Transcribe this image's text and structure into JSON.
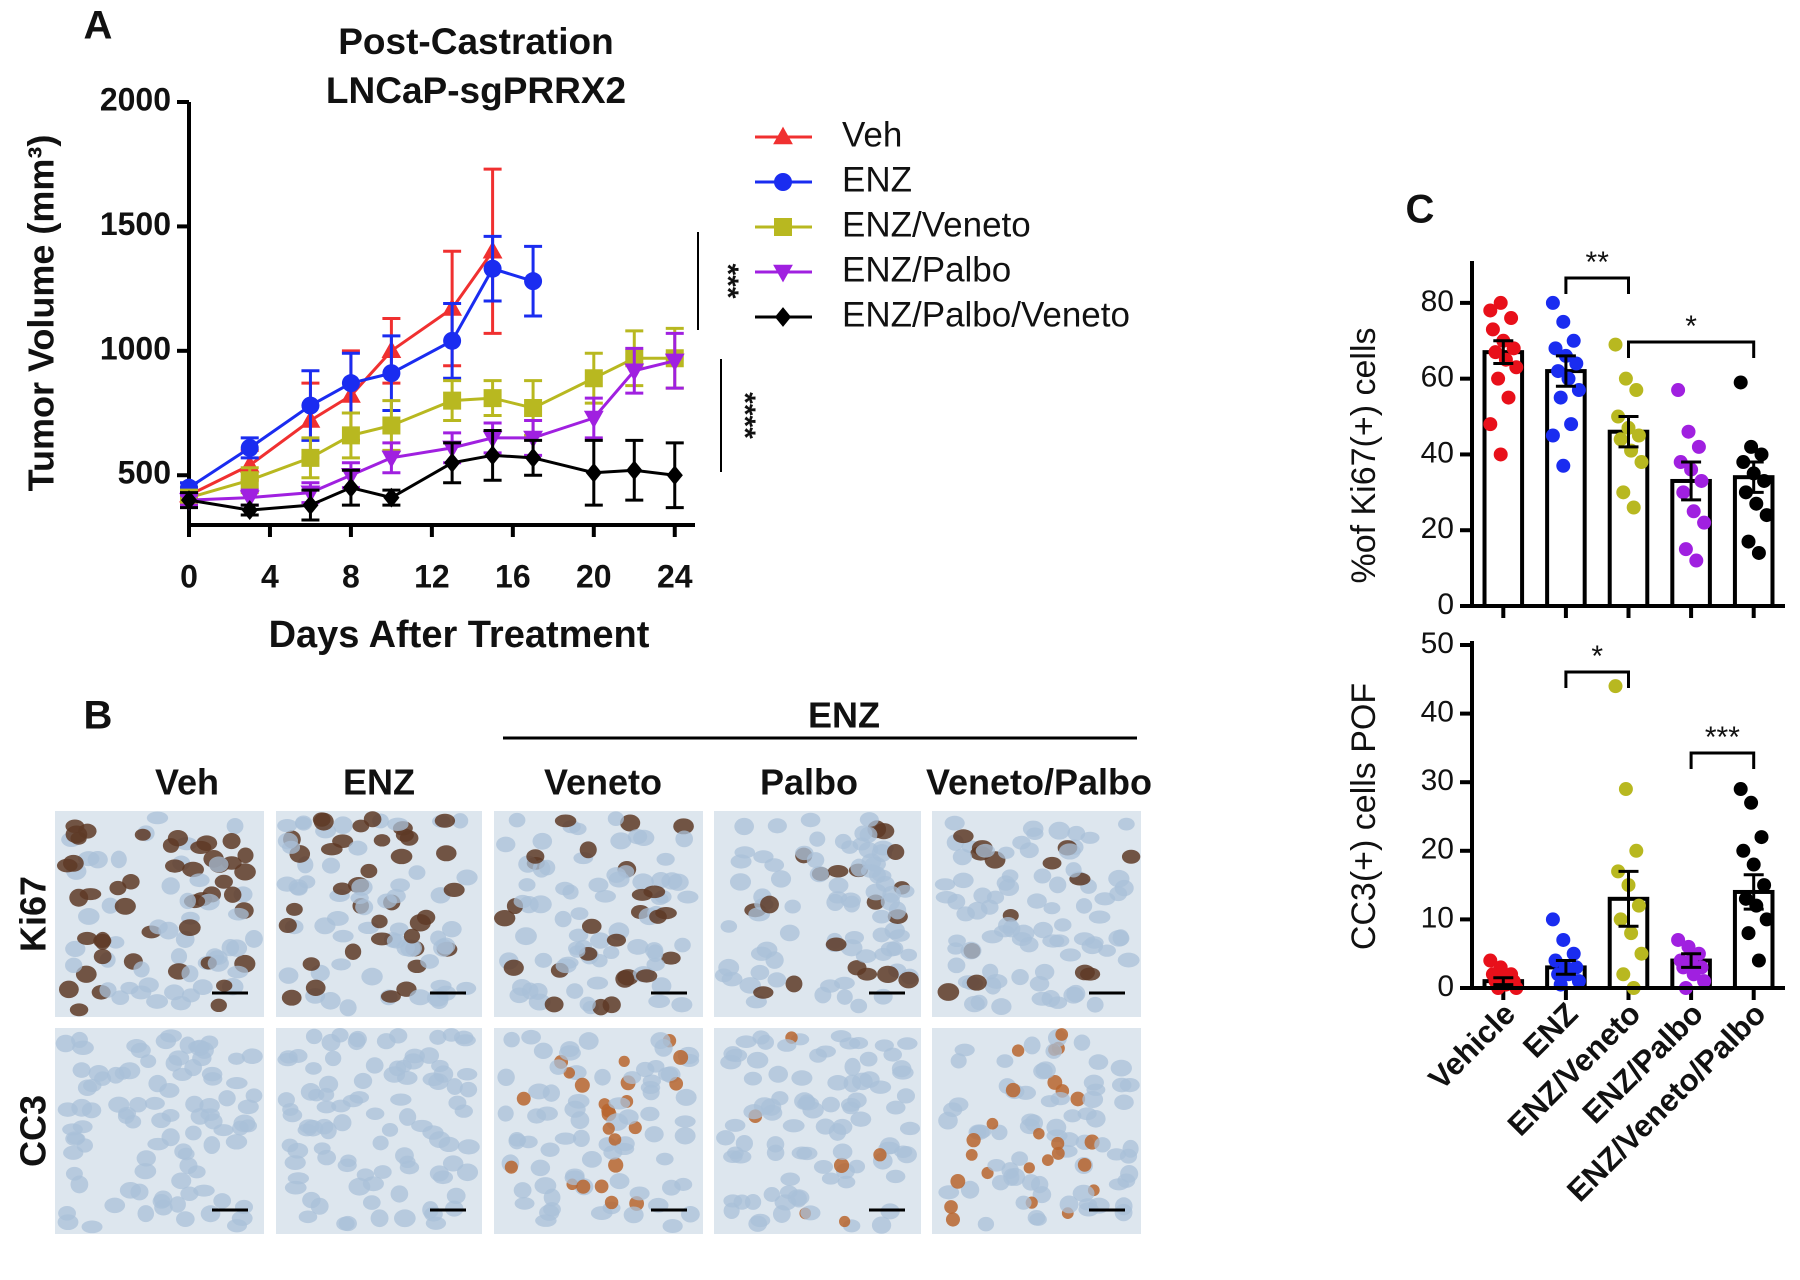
{
  "chart_data": [
    {
      "type": "line",
      "panel_label": "A",
      "title": [
        "Post-Castration",
        "LNCaP-sgPRRX2"
      ],
      "xlabel": "Days After Treatment",
      "ylabel": "Tumor Volume (mm³)",
      "x": [
        0,
        3,
        6,
        8,
        10,
        13,
        15,
        17,
        20,
        22,
        24
      ],
      "xlim": [
        0,
        25
      ],
      "xticks": [
        0,
        4,
        8,
        12,
        16,
        20,
        24
      ],
      "ylim": [
        300,
        2000
      ],
      "yticks": [
        500,
        1000,
        1500,
        2000
      ],
      "series": [
        {
          "name": "Veh",
          "color": "#f03030",
          "marker": "triangle-up",
          "values": [
            420,
            540,
            720,
            820,
            1000,
            1170,
            1400,
            null,
            null,
            null,
            null
          ],
          "errors": [
            30,
            60,
            150,
            180,
            130,
            230,
            330,
            null,
            null,
            null,
            null
          ]
        },
        {
          "name": "ENZ",
          "color": "#1a2cf0",
          "marker": "circle",
          "values": [
            450,
            610,
            780,
            870,
            910,
            1040,
            1330,
            1280,
            null,
            null,
            null
          ],
          "errors": [
            20,
            40,
            140,
            120,
            150,
            150,
            130,
            140,
            null,
            null,
            null
          ]
        },
        {
          "name": "ENZ/Veneto",
          "color": "#b8b820",
          "marker": "square",
          "values": [
            410,
            480,
            570,
            660,
            700,
            800,
            810,
            770,
            890,
            970,
            970
          ],
          "errors": [
            20,
            50,
            80,
            90,
            100,
            80,
            70,
            110,
            100,
            110,
            120
          ]
        },
        {
          "name": "ENZ/Palbo",
          "color": "#a020e0",
          "marker": "triangle-down",
          "values": [
            400,
            410,
            430,
            500,
            570,
            610,
            650,
            650,
            730,
            920,
            960
          ],
          "errors": [
            20,
            30,
            40,
            50,
            60,
            60,
            60,
            70,
            80,
            90,
            110
          ]
        },
        {
          "name": "ENZ/Palbo/Veneto",
          "color": "#000000",
          "marker": "diamond",
          "values": [
            400,
            360,
            380,
            450,
            410,
            550,
            580,
            570,
            510,
            520,
            500
          ],
          "errors": [
            30,
            20,
            60,
            70,
            30,
            80,
            100,
            70,
            130,
            120,
            130
          ]
        }
      ],
      "annotations": [
        "***",
        "****"
      ]
    },
    {
      "type": "bar_scatter",
      "panel_label": "C",
      "ylabel": "%of Ki67(+) cells",
      "categories": [
        null,
        null,
        null,
        null,
        null
      ],
      "colors": [
        "#e8101a",
        "#1a2cf0",
        "#b8b820",
        "#a020e0",
        "#000000"
      ],
      "values": [
        67,
        62,
        46,
        33,
        34
      ],
      "errors": [
        3,
        4,
        4,
        5,
        4
      ],
      "points": [
        [
          78,
          80,
          76,
          73,
          70,
          68,
          67,
          65,
          63,
          60,
          55,
          48,
          40
        ],
        [
          80,
          75,
          70,
          68,
          66,
          64,
          62,
          60,
          57,
          55,
          48,
          45,
          37
        ],
        [
          69,
          60,
          57,
          50,
          47,
          45,
          44,
          41,
          38,
          30,
          26
        ],
        [
          57,
          46,
          42,
          38,
          36,
          33,
          30,
          25,
          22,
          15,
          12
        ],
        [
          59,
          42,
          40,
          38,
          35,
          33,
          30,
          27,
          24,
          17,
          14
        ]
      ],
      "ylim": [
        0,
        90
      ],
      "yticks": [
        0,
        20,
        40,
        60,
        80
      ],
      "annotations": [
        "**",
        "*"
      ]
    },
    {
      "type": "bar_scatter",
      "ylabel": "CC3(+) cells POF",
      "categories": [
        "Vehicle",
        "ENZ",
        "ENZ/Veneto",
        "ENZ/Palbo",
        "ENZ/Veneto/Palbo"
      ],
      "colors": [
        "#e8101a",
        "#1a2cf0",
        "#b8b820",
        "#a020e0",
        "#000000"
      ],
      "values": [
        1,
        3,
        13,
        4,
        14
      ],
      "errors": [
        0.5,
        1,
        4,
        1,
        2.5
      ],
      "points": [
        [
          4,
          3,
          2,
          2,
          1.5,
          1,
          1,
          0.5,
          0,
          0
        ],
        [
          10,
          7,
          5,
          4,
          3,
          3,
          2,
          2,
          1,
          0.5
        ],
        [
          44,
          29,
          20,
          17,
          15,
          12,
          10,
          8,
          5,
          2,
          0
        ],
        [
          7,
          6,
          5,
          4,
          4,
          3,
          3,
          2,
          1,
          0
        ],
        [
          29,
          27,
          22,
          20,
          18,
          15,
          13,
          12,
          10,
          8,
          4
        ]
      ],
      "ylim": [
        0,
        50
      ],
      "yticks": [
        0,
        10,
        20,
        30,
        40,
        50
      ],
      "annotations": [
        "*",
        "***"
      ]
    }
  ],
  "panel_b": {
    "label": "B",
    "group_label": "ENZ",
    "columns": [
      "Veh",
      "ENZ",
      "Veneto",
      "Palbo",
      "Veneto/Palbo"
    ],
    "rows": [
      "Ki67",
      "CC3"
    ]
  }
}
